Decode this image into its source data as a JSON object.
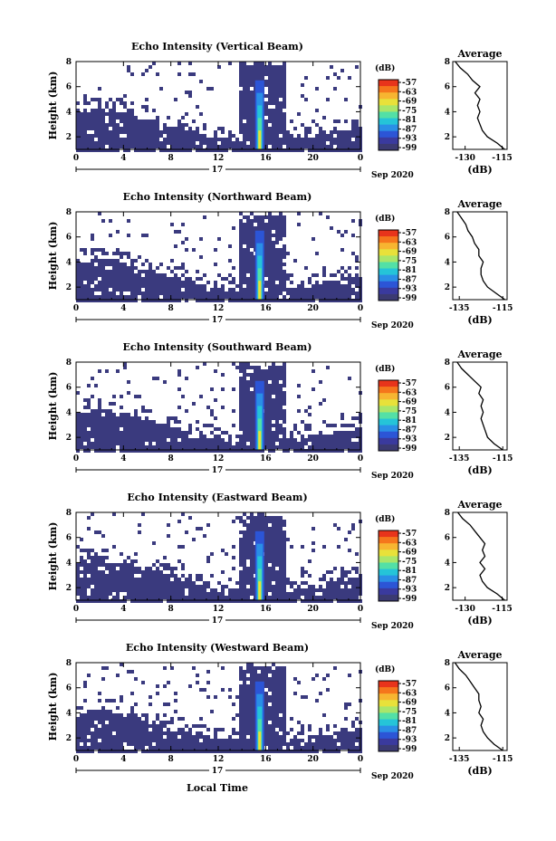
{
  "shared": {
    "ylabel": "Height (km)",
    "xlabel": "Local Time",
    "unit_label": "(dB)",
    "avg_title": "Average",
    "avg_xlabel": "(dB)",
    "date_label": "Sep 2020",
    "day_label": "17",
    "x_ticks": [
      "0",
      "4",
      "8",
      "12",
      "16",
      "20",
      "0"
    ],
    "y_ticks": [
      "2",
      "4",
      "6",
      "8"
    ],
    "colorbar_ticks": [
      "-57",
      "-63",
      "-69",
      "-75",
      "-81",
      "-87",
      "-93",
      "-99"
    ],
    "colorbar_colors": [
      "#e8341b",
      "#f5761c",
      "#f7b531",
      "#e8e13a",
      "#a9e66a",
      "#53e0a6",
      "#25c4d8",
      "#2a8fe6",
      "#2c55d6",
      "#3a3a9e",
      "#3b3a72"
    ]
  },
  "chart_data": [
    {
      "type": "heatmap",
      "title": "Echo Intensity (Vertical Beam)",
      "xlabel": "",
      "ylabel": "Height (km)",
      "xlim": [
        0,
        24
      ],
      "ylim": [
        1,
        8
      ],
      "x_ticks": [
        0,
        4,
        8,
        12,
        16,
        20,
        24
      ],
      "colorbar": {
        "label": "(dB)",
        "ticks": [
          -57,
          -63,
          -69,
          -75,
          -81,
          -87,
          -93,
          -99
        ],
        "range": [
          -99,
          -57
        ]
      },
      "average_profile": {
        "title": "Average",
        "xlabel": "(dB)",
        "x_ticks": [
          -130,
          -115
        ],
        "xlim": [
          -135,
          -113
        ],
        "ylim": [
          1,
          8
        ],
        "height_km": [
          1.0,
          1.5,
          2.0,
          2.5,
          3.0,
          3.5,
          4.0,
          4.5,
          5.0,
          5.5,
          6.0,
          6.5,
          7.0,
          7.5,
          8.0
        ],
        "db": [
          -114,
          -117,
          -121,
          -123,
          -124,
          -125,
          -124,
          -125,
          -124,
          -126,
          -124,
          -127,
          -129,
          -132,
          -134
        ]
      }
    },
    {
      "type": "heatmap",
      "title": "Echo Intensity (Northward Beam)",
      "xlabel": "",
      "ylabel": "Height (km)",
      "xlim": [
        0,
        24
      ],
      "ylim": [
        1,
        8
      ],
      "x_ticks": [
        0,
        4,
        8,
        12,
        16,
        20,
        24
      ],
      "colorbar": {
        "label": "(dB)",
        "ticks": [
          -57,
          -63,
          -69,
          -75,
          -81,
          -87,
          -93,
          -99
        ],
        "range": [
          -99,
          -57
        ]
      },
      "average_profile": {
        "title": "Average",
        "xlabel": "(dB)",
        "x_ticks": [
          -135,
          -115
        ],
        "xlim": [
          -138,
          -113
        ],
        "ylim": [
          1,
          8
        ],
        "height_km": [
          1.0,
          1.5,
          2.0,
          2.5,
          3.0,
          3.5,
          4.0,
          4.5,
          5.0,
          5.5,
          6.0,
          6.5,
          7.0,
          7.5,
          8.0
        ],
        "db": [
          -114,
          -118,
          -122,
          -124,
          -125,
          -125,
          -124,
          -126,
          -126,
          -128,
          -129,
          -131,
          -132,
          -134,
          -136
        ]
      }
    },
    {
      "type": "heatmap",
      "title": "Echo Intensity (Southward Beam)",
      "xlabel": "",
      "ylabel": "Height (km)",
      "xlim": [
        0,
        24
      ],
      "ylim": [
        1,
        8
      ],
      "x_ticks": [
        0,
        4,
        8,
        12,
        16,
        20,
        24
      ],
      "colorbar": {
        "label": "(dB)",
        "ticks": [
          -57,
          -63,
          -69,
          -75,
          -81,
          -87,
          -93,
          -99
        ],
        "range": [
          -99,
          -57
        ]
      },
      "average_profile": {
        "title": "Average",
        "xlabel": "(dB)",
        "x_ticks": [
          -135,
          -115
        ],
        "xlim": [
          -138,
          -113
        ],
        "ylim": [
          1,
          8
        ],
        "height_km": [
          1.0,
          1.5,
          2.0,
          2.5,
          3.0,
          3.5,
          4.0,
          4.5,
          5.0,
          5.5,
          6.0,
          6.5,
          7.0,
          7.5,
          8.0
        ],
        "db": [
          -115,
          -119,
          -122,
          -123,
          -124,
          -125,
          -124,
          -125,
          -124,
          -126,
          -125,
          -128,
          -131,
          -134,
          -136
        ]
      }
    },
    {
      "type": "heatmap",
      "title": "Echo Intensity (Eastward Beam)",
      "xlabel": "",
      "ylabel": "Height (km)",
      "xlim": [
        0,
        24
      ],
      "ylim": [
        1,
        8
      ],
      "x_ticks": [
        0,
        4,
        8,
        12,
        16,
        20,
        24
      ],
      "colorbar": {
        "label": "(dB)",
        "ticks": [
          -57,
          -63,
          -69,
          -75,
          -81,
          -87,
          -93,
          -99
        ],
        "range": [
          -99,
          -57
        ]
      },
      "average_profile": {
        "title": "Average",
        "xlabel": "(dB)",
        "x_ticks": [
          -130,
          -115
        ],
        "xlim": [
          -135,
          -113
        ],
        "ylim": [
          1,
          8
        ],
        "height_km": [
          1.0,
          1.5,
          2.0,
          2.5,
          3.0,
          3.5,
          4.0,
          4.5,
          5.0,
          5.5,
          6.0,
          6.5,
          7.0,
          7.5,
          8.0
        ],
        "db": [
          -114,
          -117,
          -121,
          -123,
          -124,
          -122,
          -124,
          -122,
          -123,
          -122,
          -124,
          -126,
          -128,
          -131,
          -133
        ]
      }
    },
    {
      "type": "heatmap",
      "title": "Echo Intensity (Westward Beam)",
      "xlabel": "Local Time",
      "ylabel": "Height (km)",
      "xlim": [
        0,
        24
      ],
      "ylim": [
        1,
        8
      ],
      "x_ticks": [
        0,
        4,
        8,
        12,
        16,
        20,
        24
      ],
      "colorbar": {
        "label": "(dB)",
        "ticks": [
          -57,
          -63,
          -69,
          -75,
          -81,
          -87,
          -93,
          -99
        ],
        "range": [
          -99,
          -57
        ]
      },
      "average_profile": {
        "title": "Average",
        "xlabel": "(dB)",
        "x_ticks": [
          -135,
          -115
        ],
        "xlim": [
          -138,
          -113
        ],
        "ylim": [
          1,
          8
        ],
        "height_km": [
          1.0,
          1.5,
          2.0,
          2.5,
          3.0,
          3.5,
          4.0,
          4.5,
          5.0,
          5.5,
          6.0,
          6.5,
          7.0,
          7.5,
          8.0
        ],
        "db": [
          -115,
          -119,
          -122,
          -124,
          -125,
          -124,
          -126,
          -125,
          -126,
          -126,
          -128,
          -130,
          -132,
          -135,
          -137
        ]
      }
    }
  ]
}
